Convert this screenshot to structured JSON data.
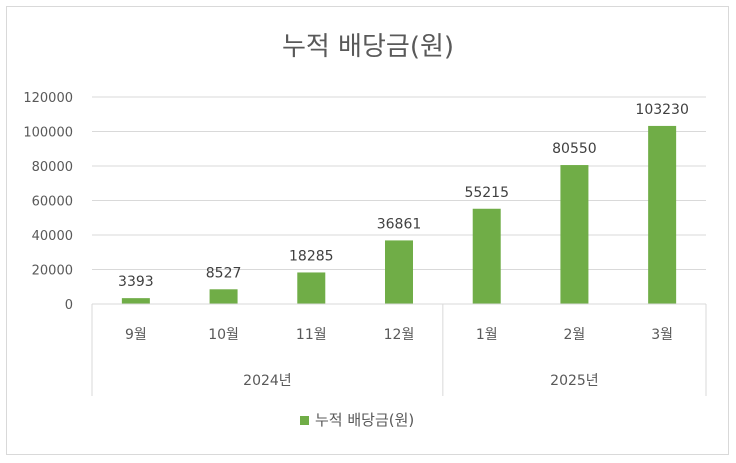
{
  "chart_data": {
    "type": "bar",
    "title": "누적 배당금(원)",
    "categories": [
      "9월",
      "10월",
      "11월",
      "12월",
      "1월",
      "2월",
      "3월"
    ],
    "groups": [
      {
        "label": "2024년",
        "categories": [
          "9월",
          "10월",
          "11월",
          "12월"
        ]
      },
      {
        "label": "2025년",
        "categories": [
          "1월",
          "2월",
          "3월"
        ]
      }
    ],
    "series": [
      {
        "name": "누적 배당금(원)",
        "values": [
          3393,
          8527,
          18285,
          36861,
          55215,
          80550,
          103230
        ]
      }
    ],
    "ylim": [
      0,
      120000
    ],
    "yticks": [
      "0",
      "20000",
      "40000",
      "60000",
      "80000",
      "100000",
      "120000"
    ],
    "grid": true,
    "legend": "bottom",
    "colors": {
      "bar": "#70ad47",
      "grid": "#d9d9d9",
      "text": "#595959",
      "frame": "#d9d9d9"
    }
  }
}
